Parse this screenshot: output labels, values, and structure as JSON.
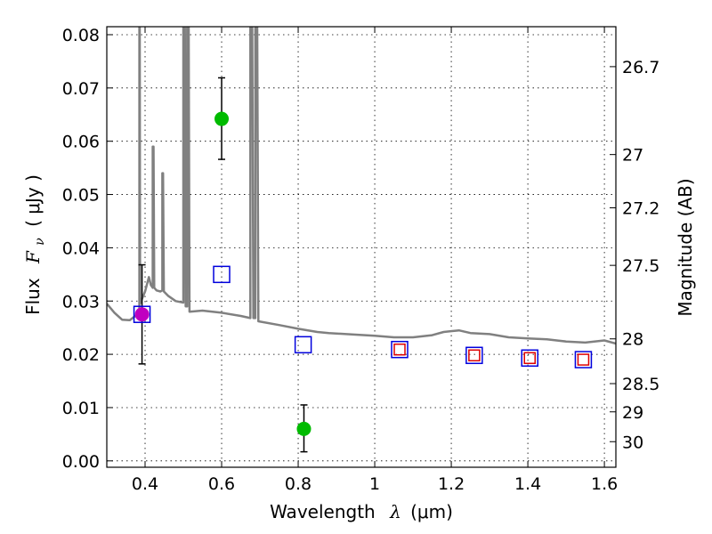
{
  "chart_data": {
    "type": "scatter",
    "title": "",
    "xlabel": {
      "text": "Wavelength",
      "symbol": "λ",
      "unit": "(μm)"
    },
    "ylabel": {
      "text": "Flux",
      "symbol": "F",
      "subscript": "ν",
      "unit": "( μJy )"
    },
    "y2label": "Magnitude (AB)",
    "xlim": [
      0.3,
      1.63
    ],
    "ylim": [
      -0.0012,
      0.0815
    ],
    "grid": true,
    "x_ticks": [
      {
        "value": 0.4,
        "label": "0.4"
      },
      {
        "value": 0.6,
        "label": "0.6"
      },
      {
        "value": 0.8,
        "label": "0.8"
      },
      {
        "value": 1.0,
        "label": "1"
      },
      {
        "value": 1.2,
        "label": "1.2"
      },
      {
        "value": 1.4,
        "label": "1.4"
      },
      {
        "value": 1.6,
        "label": "1.6"
      }
    ],
    "y_ticks": [
      {
        "value": 0.0,
        "label": "0.00"
      },
      {
        "value": 0.01,
        "label": "0.01"
      },
      {
        "value": 0.02,
        "label": "0.02"
      },
      {
        "value": 0.03,
        "label": "0.03"
      },
      {
        "value": 0.04,
        "label": "0.04"
      },
      {
        "value": 0.05,
        "label": "0.05"
      },
      {
        "value": 0.06,
        "label": "0.06"
      },
      {
        "value": 0.07,
        "label": "0.07"
      },
      {
        "value": 0.08,
        "label": "0.08"
      }
    ],
    "y2_ticks": [
      {
        "flux": 0.074,
        "label": "26.7"
      },
      {
        "flux": 0.0575,
        "label": "27"
      },
      {
        "flux": 0.0475,
        "label": "27.2"
      },
      {
        "flux": 0.0367,
        "label": "27.5"
      },
      {
        "flux": 0.0229,
        "label": "28"
      },
      {
        "flux": 0.0145,
        "label": "28.5"
      },
      {
        "flux": 0.0092,
        "label": "29"
      },
      {
        "flux": 0.0036,
        "label": "30"
      }
    ],
    "series": [
      {
        "type": "line",
        "color": "#808080",
        "points": [
          [
            0.3,
            0.0295
          ],
          [
            0.32,
            0.0278
          ],
          [
            0.34,
            0.0265
          ],
          [
            0.36,
            0.0264
          ],
          [
            0.38,
            0.0275
          ],
          [
            0.385,
            0.028
          ],
          [
            0.385,
            0.0815
          ],
          [
            0.386,
            0.0815
          ],
          [
            0.387,
            0.0295
          ],
          [
            0.4,
            0.0318
          ],
          [
            0.41,
            0.0345
          ],
          [
            0.415,
            0.033
          ],
          [
            0.42,
            0.0325
          ],
          [
            0.42,
            0.059
          ],
          [
            0.422,
            0.059
          ],
          [
            0.424,
            0.0325
          ],
          [
            0.43,
            0.032
          ],
          [
            0.44,
            0.0318
          ],
          [
            0.445,
            0.032
          ],
          [
            0.445,
            0.054
          ],
          [
            0.447,
            0.054
          ],
          [
            0.449,
            0.0318
          ],
          [
            0.46,
            0.031
          ],
          [
            0.48,
            0.03
          ],
          [
            0.5,
            0.0297
          ],
          [
            0.5,
            0.0815
          ],
          [
            0.504,
            0.0815
          ],
          [
            0.506,
            0.029
          ],
          [
            0.51,
            0.029
          ],
          [
            0.51,
            0.0815
          ],
          [
            0.514,
            0.0815
          ],
          [
            0.516,
            0.028
          ],
          [
            0.55,
            0.0282
          ],
          [
            0.6,
            0.0278
          ],
          [
            0.65,
            0.0272
          ],
          [
            0.675,
            0.0268
          ],
          [
            0.675,
            0.0815
          ],
          [
            0.68,
            0.0815
          ],
          [
            0.683,
            0.0268
          ],
          [
            0.688,
            0.0268
          ],
          [
            0.688,
            0.0815
          ],
          [
            0.693,
            0.0815
          ],
          [
            0.696,
            0.0262
          ],
          [
            0.75,
            0.0255
          ],
          [
            0.8,
            0.0248
          ],
          [
            0.85,
            0.0242
          ],
          [
            0.88,
            0.024
          ],
          [
            0.95,
            0.0237
          ],
          [
            1.0,
            0.0235
          ],
          [
            1.05,
            0.0232
          ],
          [
            1.1,
            0.0232
          ],
          [
            1.15,
            0.0236
          ],
          [
            1.18,
            0.0242
          ],
          [
            1.22,
            0.0245
          ],
          [
            1.25,
            0.024
          ],
          [
            1.3,
            0.0238
          ],
          [
            1.35,
            0.0232
          ],
          [
            1.4,
            0.023
          ],
          [
            1.45,
            0.0228
          ],
          [
            1.5,
            0.0224
          ],
          [
            1.55,
            0.0222
          ],
          [
            1.6,
            0.0226
          ],
          [
            1.63,
            0.022
          ]
        ]
      },
      {
        "type": "error_points",
        "marker": "circle",
        "color": "#00bb00",
        "points": [
          {
            "x": 0.6,
            "y": 0.0642,
            "err_low": 0.0076,
            "err_high": 0.0077
          },
          {
            "x": 0.815,
            "y": 0.006,
            "err_low": 0.0043,
            "err_high": 0.0045
          }
        ]
      },
      {
        "type": "error_points",
        "marker": "circle",
        "color": "#c000c0",
        "points": [
          {
            "x": 0.392,
            "y": 0.0275,
            "err_low": 0.0093,
            "err_high": 0.0093
          }
        ]
      },
      {
        "type": "points",
        "marker": "square-open",
        "color": "#0000dd",
        "points": [
          [
            0.392,
            0.0275
          ],
          [
            0.6,
            0.035
          ],
          [
            0.813,
            0.0218
          ],
          [
            1.065,
            0.0209
          ],
          [
            1.26,
            0.0198
          ],
          [
            1.405,
            0.0193
          ],
          [
            1.545,
            0.019
          ]
        ]
      },
      {
        "type": "points",
        "marker": "square-open-small",
        "color": "#dd0000",
        "points": [
          [
            1.065,
            0.0209
          ],
          [
            1.26,
            0.0198
          ],
          [
            1.405,
            0.0193
          ],
          [
            1.545,
            0.019
          ]
        ]
      }
    ]
  }
}
